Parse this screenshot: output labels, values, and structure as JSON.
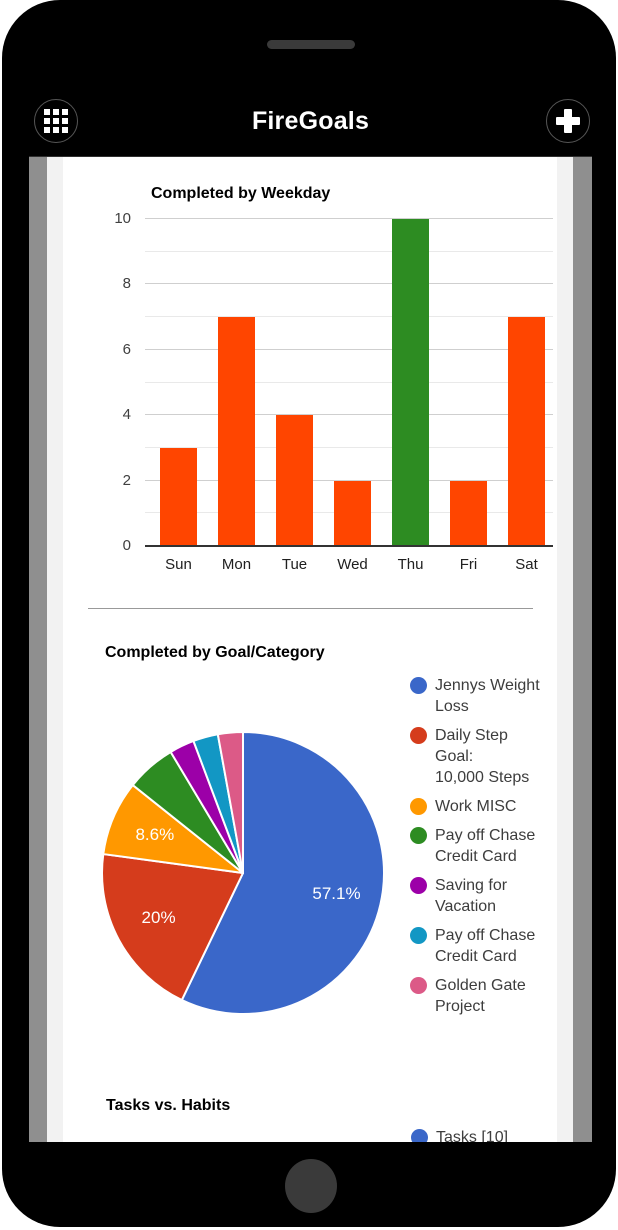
{
  "header": {
    "title": "FireGoals"
  },
  "colors": {
    "header_bg": "#000000",
    "screen_gutter": "#8f8f8f",
    "page_strip": "#f2f2f2",
    "bar_orange": "#FF4500",
    "bar_green": "#2D8C22",
    "grid_major": "#cfcfcf",
    "grid_minor": "#e9e9e9"
  },
  "chart_data": [
    {
      "type": "bar",
      "title": "Completed by Weekday",
      "categories": [
        "Sun",
        "Mon",
        "Tue",
        "Wed",
        "Thu",
        "Fri",
        "Sat"
      ],
      "values": [
        3,
        7,
        4,
        2,
        10,
        2,
        7
      ],
      "bar_colors": [
        "#FF4500",
        "#FF4500",
        "#FF4500",
        "#FF4500",
        "#2D8C22",
        "#FF4500",
        "#FF4500"
      ],
      "xlabel": "",
      "ylabel": "",
      "ylim": [
        0,
        10
      ],
      "yticks": [
        0,
        2,
        4,
        6,
        8,
        10
      ],
      "grid": true,
      "legend_position": "none"
    },
    {
      "type": "pie",
      "title": "Completed by Goal/Category",
      "labels": [
        "Jennys Weight Loss",
        "Daily Step Goal: 10,000 Steps",
        "Work MISC",
        "Pay off Chase Credit Card",
        "Saving for Vacation",
        "Pay off Chase Credit Card",
        "Golden Gate Project"
      ],
      "values": [
        20,
        7,
        3,
        2,
        1,
        1,
        1
      ],
      "percent_labels": [
        "57.1%",
        "20%",
        "8.6%",
        "",
        "",
        "",
        ""
      ],
      "colors": [
        "#3A67C9",
        "#D53C1C",
        "#FF9800",
        "#2D8C22",
        "#9C00A8",
        "#1297C4",
        "#DC5A87"
      ],
      "legend_position": "right",
      "legend_lines": [
        [
          "Jennys Weight",
          "Loss"
        ],
        [
          "Daily Step Goal:",
          "10,000 Steps"
        ],
        [
          "Work MISC"
        ],
        [
          "Pay off Chase",
          "Credit Card"
        ],
        [
          "Saving for",
          "Vacation"
        ],
        [
          "Pay off Chase",
          "Credit Card"
        ],
        [
          "Golden Gate",
          "Project"
        ]
      ]
    },
    {
      "type": "pie",
      "title": "Tasks vs. Habits",
      "clipped": true,
      "legend_position": "right",
      "legend_visible": [
        {
          "label": "Tasks [10]",
          "color": "#3A67C9"
        }
      ]
    }
  ]
}
